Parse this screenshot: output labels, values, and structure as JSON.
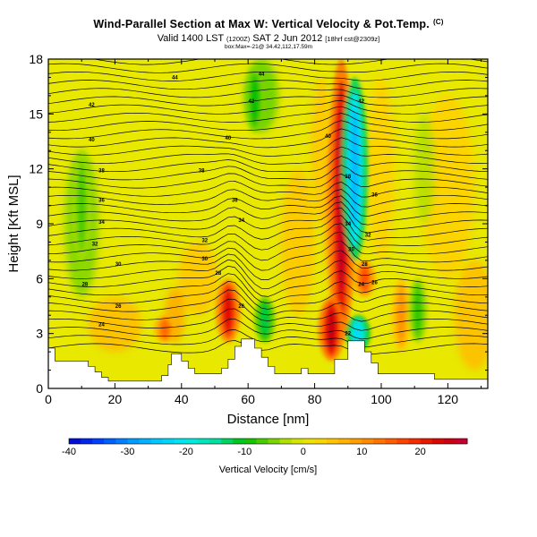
{
  "header": {
    "title": "Wind-Parallel Section at Max W: Vertical Velocity & Pot.Temp.",
    "title_mark": "(C)",
    "valid_line": "Valid 1400 LST",
    "valid_utc": "(1200Z)",
    "valid_date": "SAT 2 Jun 2012",
    "valid_fcst": "[18hrf cst@2309z]",
    "sub_line": "box:Max=-21@ 34.42,112,17.59m"
  },
  "chart_data": {
    "type": "heatmap",
    "xlabel": "Distance [nm]",
    "ylabel": "Height [Kft MSL]",
    "xlim": [
      0,
      132
    ],
    "ylim": [
      0,
      18
    ],
    "x_ticks": [
      "0",
      "20",
      "40",
      "60",
      "80",
      "100",
      "120"
    ],
    "y_ticks": [
      "0",
      "3",
      "6",
      "9",
      "12",
      "15",
      "18"
    ],
    "colorbar": {
      "label": "Vertical Velocity [cm/s]",
      "range": [
        -40,
        28
      ],
      "tick_labels": [
        "-40",
        "-30",
        "-20",
        "-10",
        "0",
        "10",
        "20"
      ]
    },
    "updrafts": [
      {
        "x": 88,
        "z_low": 2.5,
        "z_high": 18,
        "w": 26
      },
      {
        "x": 85,
        "z_low": 1.5,
        "z_high": 5,
        "w": 25
      },
      {
        "x": 54,
        "z_low": 2.5,
        "z_high": 6,
        "w": 22
      },
      {
        "x": 35,
        "z_low": 2.5,
        "z_high": 4,
        "w": 14
      },
      {
        "x": 95,
        "z_low": 5,
        "z_high": 7,
        "w": 16
      },
      {
        "x": 106,
        "z_low": 2,
        "z_high": 6,
        "w": 10
      }
    ],
    "downdrafts": [
      {
        "x": 92,
        "z_low": 7,
        "z_high": 17,
        "w": -26
      },
      {
        "x": 93,
        "z_low": 2,
        "z_high": 4,
        "w": -22
      },
      {
        "x": 65,
        "z_low": 2.5,
        "z_high": 5,
        "w": -12
      },
      {
        "x": 10,
        "z_low": 7,
        "z_high": 13,
        "w": -7
      },
      {
        "x": 62,
        "z_low": 14,
        "z_high": 17.5,
        "w": -10
      },
      {
        "x": 111,
        "z_low": 2.5,
        "z_high": 6,
        "w": -8
      }
    ],
    "theta_labels": [
      {
        "text": "44",
        "x": 38,
        "z": 17.0
      },
      {
        "text": "44",
        "x": 64,
        "z": 17.2
      },
      {
        "text": "42",
        "x": 13,
        "z": 15.5
      },
      {
        "text": "42",
        "x": 61,
        "z": 15.7
      },
      {
        "text": "42",
        "x": 94,
        "z": 15.7
      },
      {
        "text": "40",
        "x": 13,
        "z": 13.6
      },
      {
        "text": "40",
        "x": 54,
        "z": 13.7
      },
      {
        "text": "40",
        "x": 84,
        "z": 13.8
      },
      {
        "text": "38",
        "x": 16,
        "z": 11.9
      },
      {
        "text": "38",
        "x": 46,
        "z": 11.9
      },
      {
        "text": "38",
        "x": 90,
        "z": 11.6
      },
      {
        "text": "36",
        "x": 16,
        "z": 10.3
      },
      {
        "text": "36",
        "x": 56,
        "z": 10.3
      },
      {
        "text": "36",
        "x": 98,
        "z": 10.6
      },
      {
        "text": "34",
        "x": 16,
        "z": 9.1
      },
      {
        "text": "34",
        "x": 58,
        "z": 9.2
      },
      {
        "text": "34",
        "x": 90,
        "z": 9.0
      },
      {
        "text": "32",
        "x": 14,
        "z": 7.9
      },
      {
        "text": "32",
        "x": 47,
        "z": 8.1
      },
      {
        "text": "32",
        "x": 96,
        "z": 8.4
      },
      {
        "text": "30",
        "x": 21,
        "z": 6.8
      },
      {
        "text": "30",
        "x": 47,
        "z": 7.1
      },
      {
        "text": "30",
        "x": 91,
        "z": 7.6
      },
      {
        "text": "28",
        "x": 11,
        "z": 5.7
      },
      {
        "text": "28",
        "x": 51,
        "z": 6.3
      },
      {
        "text": "28",
        "x": 95,
        "z": 6.8
      },
      {
        "text": "26",
        "x": 21,
        "z": 4.5
      },
      {
        "text": "26",
        "x": 58,
        "z": 4.5
      },
      {
        "text": "26",
        "x": 98,
        "z": 5.8
      },
      {
        "text": "24",
        "x": 16,
        "z": 3.5
      },
      {
        "text": "24",
        "x": 94,
        "z": 5.7
      },
      {
        "text": "22",
        "x": 90,
        "z": 3.0
      }
    ]
  },
  "colors": {
    "background_field": "#e8e800",
    "terrain": "#ffffff",
    "contour": "#000000"
  }
}
